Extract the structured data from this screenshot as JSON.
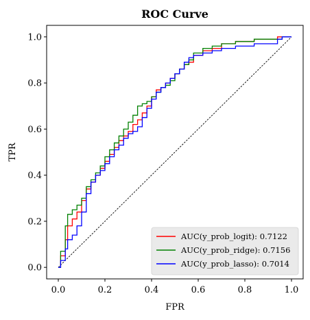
{
  "chart_data": {
    "type": "line",
    "title": "ROC Curve",
    "xlabel": "FPR",
    "ylabel": "TPR",
    "xlim": [
      -0.05,
      1.05
    ],
    "ylim": [
      -0.05,
      1.05
    ],
    "xticks": [
      "0.0",
      "0.2",
      "0.4",
      "0.6",
      "0.8",
      "1.0"
    ],
    "yticks": [
      "0.0",
      "0.2",
      "0.4",
      "0.6",
      "0.8",
      "1.0"
    ],
    "grid": false,
    "legend_position": "bottom-right",
    "baseline": {
      "x": [
        0,
        1
      ],
      "y": [
        0,
        1
      ],
      "style": "dashed",
      "color": "#000000"
    },
    "series": [
      {
        "name": "AUC(y_prob_logit): 0.7122",
        "color": "#ff0000",
        "x": [
          0.0,
          0.01,
          0.01,
          0.03,
          0.03,
          0.04,
          0.04,
          0.06,
          0.06,
          0.08,
          0.08,
          0.1,
          0.1,
          0.12,
          0.12,
          0.14,
          0.14,
          0.16,
          0.16,
          0.18,
          0.18,
          0.2,
          0.2,
          0.22,
          0.22,
          0.24,
          0.24,
          0.26,
          0.26,
          0.28,
          0.28,
          0.3,
          0.3,
          0.32,
          0.32,
          0.34,
          0.34,
          0.36,
          0.36,
          0.38,
          0.38,
          0.4,
          0.4,
          0.42,
          0.42,
          0.44,
          0.44,
          0.46,
          0.46,
          0.48,
          0.48,
          0.5,
          0.5,
          0.52,
          0.52,
          0.54,
          0.54,
          0.56,
          0.56,
          0.58,
          0.58,
          0.62,
          0.62,
          0.66,
          0.66,
          0.7,
          0.7,
          0.76,
          0.76,
          0.84,
          0.84,
          0.94,
          0.94,
          0.96,
          0.96,
          1.0
        ],
        "y": [
          0.0,
          0.0,
          0.05,
          0.05,
          0.12,
          0.12,
          0.18,
          0.18,
          0.21,
          0.21,
          0.24,
          0.24,
          0.29,
          0.29,
          0.34,
          0.34,
          0.37,
          0.37,
          0.4,
          0.4,
          0.43,
          0.43,
          0.46,
          0.46,
          0.49,
          0.49,
          0.52,
          0.52,
          0.55,
          0.55,
          0.57,
          0.57,
          0.59,
          0.59,
          0.62,
          0.62,
          0.64,
          0.64,
          0.67,
          0.67,
          0.7,
          0.7,
          0.74,
          0.74,
          0.77,
          0.77,
          0.78,
          0.78,
          0.8,
          0.8,
          0.82,
          0.82,
          0.84,
          0.84,
          0.86,
          0.86,
          0.88,
          0.88,
          0.89,
          0.89,
          0.92,
          0.92,
          0.94,
          0.94,
          0.95,
          0.95,
          0.97,
          0.97,
          0.98,
          0.98,
          0.99,
          0.99,
          1.0,
          1.0,
          1.0,
          1.0
        ]
      },
      {
        "name": "AUC(y_prob_ridge): 0.7156",
        "color": "#008000",
        "x": [
          0.0,
          0.01,
          0.01,
          0.03,
          0.03,
          0.04,
          0.04,
          0.06,
          0.06,
          0.08,
          0.08,
          0.1,
          0.1,
          0.12,
          0.12,
          0.14,
          0.14,
          0.16,
          0.16,
          0.18,
          0.18,
          0.2,
          0.2,
          0.22,
          0.22,
          0.24,
          0.24,
          0.26,
          0.26,
          0.28,
          0.28,
          0.3,
          0.3,
          0.32,
          0.32,
          0.34,
          0.34,
          0.36,
          0.36,
          0.38,
          0.38,
          0.4,
          0.4,
          0.42,
          0.42,
          0.44,
          0.44,
          0.46,
          0.46,
          0.48,
          0.48,
          0.5,
          0.5,
          0.52,
          0.52,
          0.54,
          0.54,
          0.56,
          0.56,
          0.58,
          0.58,
          0.62,
          0.62,
          0.66,
          0.66,
          0.7,
          0.7,
          0.76,
          0.76,
          0.84,
          0.84,
          0.94,
          0.94,
          0.96,
          0.96,
          1.0
        ],
        "y": [
          0.0,
          0.0,
          0.07,
          0.07,
          0.18,
          0.18,
          0.23,
          0.23,
          0.25,
          0.25,
          0.27,
          0.27,
          0.3,
          0.3,
          0.35,
          0.35,
          0.38,
          0.38,
          0.41,
          0.41,
          0.44,
          0.44,
          0.48,
          0.48,
          0.51,
          0.51,
          0.54,
          0.54,
          0.57,
          0.57,
          0.6,
          0.6,
          0.63,
          0.63,
          0.66,
          0.66,
          0.7,
          0.7,
          0.71,
          0.71,
          0.72,
          0.72,
          0.74,
          0.74,
          0.76,
          0.76,
          0.78,
          0.78,
          0.79,
          0.79,
          0.81,
          0.81,
          0.84,
          0.84,
          0.86,
          0.86,
          0.88,
          0.88,
          0.9,
          0.9,
          0.93,
          0.93,
          0.95,
          0.95,
          0.96,
          0.96,
          0.97,
          0.97,
          0.98,
          0.98,
          0.99,
          0.99,
          0.99,
          0.99,
          1.0,
          1.0
        ]
      },
      {
        "name": "AUC(y_prob_lasso): 0.7014",
        "color": "#0000ff",
        "x": [
          0.0,
          0.01,
          0.01,
          0.03,
          0.03,
          0.04,
          0.04,
          0.06,
          0.06,
          0.08,
          0.08,
          0.1,
          0.1,
          0.12,
          0.12,
          0.14,
          0.14,
          0.16,
          0.16,
          0.18,
          0.18,
          0.2,
          0.2,
          0.22,
          0.22,
          0.24,
          0.24,
          0.26,
          0.26,
          0.28,
          0.28,
          0.3,
          0.3,
          0.32,
          0.32,
          0.34,
          0.34,
          0.36,
          0.36,
          0.38,
          0.38,
          0.4,
          0.4,
          0.42,
          0.42,
          0.44,
          0.44,
          0.46,
          0.46,
          0.48,
          0.48,
          0.5,
          0.5,
          0.52,
          0.52,
          0.54,
          0.54,
          0.56,
          0.56,
          0.58,
          0.58,
          0.62,
          0.62,
          0.66,
          0.66,
          0.7,
          0.7,
          0.76,
          0.76,
          0.84,
          0.84,
          0.94,
          0.94,
          0.96,
          0.96,
          1.0
        ],
        "y": [
          0.0,
          0.0,
          0.03,
          0.03,
          0.08,
          0.08,
          0.12,
          0.12,
          0.14,
          0.14,
          0.18,
          0.18,
          0.24,
          0.24,
          0.32,
          0.32,
          0.37,
          0.37,
          0.4,
          0.4,
          0.42,
          0.42,
          0.45,
          0.45,
          0.48,
          0.48,
          0.51,
          0.51,
          0.53,
          0.53,
          0.56,
          0.56,
          0.58,
          0.58,
          0.59,
          0.59,
          0.61,
          0.61,
          0.65,
          0.65,
          0.69,
          0.69,
          0.73,
          0.73,
          0.76,
          0.76,
          0.78,
          0.78,
          0.8,
          0.8,
          0.82,
          0.82,
          0.84,
          0.84,
          0.86,
          0.86,
          0.89,
          0.89,
          0.91,
          0.91,
          0.92,
          0.92,
          0.93,
          0.93,
          0.94,
          0.94,
          0.95,
          0.95,
          0.96,
          0.96,
          0.97,
          0.97,
          0.99,
          0.99,
          1.0,
          1.0
        ]
      }
    ]
  }
}
